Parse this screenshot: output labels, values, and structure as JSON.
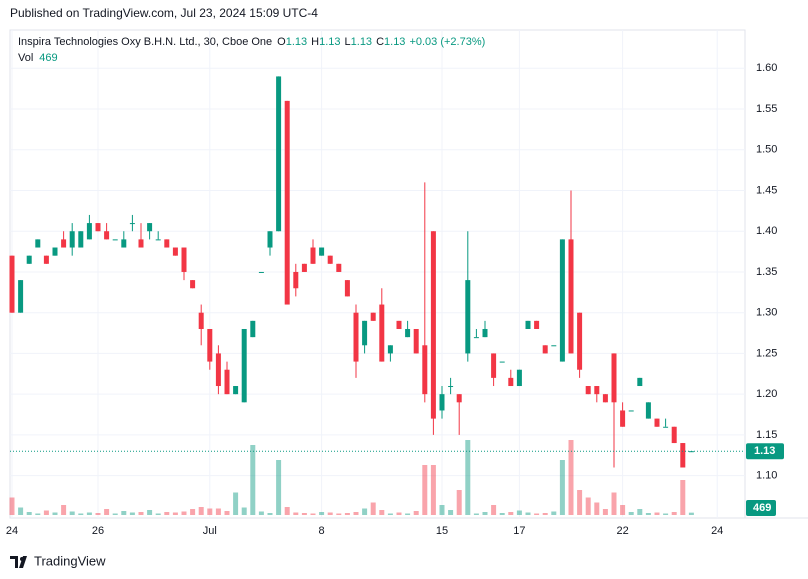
{
  "chart_data": {
    "type": "candlestick",
    "published": "Published on TradingView.com, Jul 23, 2024 15:09 UTC-4",
    "title": "Inspira Technologies Oxy B.H.N. Ltd., 30, Cboe One",
    "legend": {
      "items": [
        {
          "label": "O",
          "value": 1.13
        },
        {
          "label": "H",
          "value": 1.13
        },
        {
          "label": "L",
          "value": 1.13
        },
        {
          "label": "C",
          "value": 1.13
        }
      ],
      "change": "+0.03 (+2.73%)",
      "volume_label": "Vol",
      "volume_value": 469
    },
    "last_price": 1.13,
    "last_volume": 469,
    "brand": "TradingView",
    "up_color": "#089981",
    "down_color": "#f23645",
    "categories": [
      "24",
      null,
      null,
      null,
      null,
      null,
      null,
      null,
      null,
      null,
      "26",
      null,
      null,
      null,
      null,
      null,
      null,
      null,
      null,
      null,
      null,
      null,
      null,
      "Jul",
      null,
      null,
      null,
      null,
      null,
      null,
      null,
      null,
      null,
      null,
      null,
      null,
      "8",
      null,
      null,
      null,
      null,
      null,
      null,
      null,
      null,
      null,
      null,
      null,
      null,
      null,
      "15",
      null,
      null,
      null,
      null,
      null,
      null,
      null,
      null,
      "17",
      null,
      null,
      null,
      null,
      null,
      null,
      null,
      null,
      null,
      null,
      null,
      "22",
      null,
      null,
      null,
      null,
      null,
      null,
      null,
      null,
      null,
      null,
      "24",
      null
    ],
    "open": [
      1.37,
      1.3,
      1.36,
      1.38,
      1.37,
      1.37,
      1.39,
      1.38,
      1.38,
      1.39,
      1.41,
      1.4,
      1.39,
      1.38,
      1.41,
      1.39,
      1.4,
      1.39,
      1.39,
      1.38,
      1.38,
      1.34,
      1.3,
      1.28,
      1.25,
      1.23,
      1.2,
      1.19,
      1.27,
      1.35,
      1.38,
      1.4,
      1.56,
      1.35,
      1.36,
      1.38,
      1.37,
      1.37,
      1.36,
      1.34,
      1.3,
      1.26,
      1.3,
      1.31,
      1.25,
      1.29,
      1.27,
      1.28,
      1.26,
      1.4,
      1.18,
      1.21,
      1.2,
      1.25,
      1.27,
      1.27,
      1.25,
      1.24,
      1.22,
      1.21,
      1.28,
      1.29,
      1.26,
      1.26,
      1.24,
      1.39,
      1.3,
      1.21,
      1.21,
      1.2,
      1.25,
      1.18,
      1.18,
      1.21,
      1.17,
      1.17,
      1.16,
      1.16,
      1.14,
      1.13,
      null,
      null,
      null,
      null
    ],
    "high": [
      1.37,
      1.34,
      1.37,
      1.39,
      1.37,
      1.38,
      1.4,
      1.41,
      1.4,
      1.42,
      1.41,
      1.41,
      1.39,
      1.4,
      1.42,
      1.41,
      1.41,
      1.4,
      1.39,
      1.38,
      1.38,
      1.34,
      1.31,
      1.28,
      1.26,
      1.24,
      1.21,
      1.28,
      1.29,
      1.35,
      1.4,
      1.59,
      1.56,
      1.36,
      1.36,
      1.39,
      1.38,
      1.37,
      1.36,
      1.34,
      1.31,
      1.29,
      1.3,
      1.33,
      1.26,
      1.29,
      1.29,
      1.28,
      1.46,
      1.4,
      1.21,
      1.22,
      1.2,
      1.4,
      1.28,
      1.29,
      1.25,
      1.24,
      1.23,
      1.23,
      1.29,
      1.29,
      1.26,
      1.26,
      1.39,
      1.45,
      1.3,
      1.21,
      1.21,
      1.2,
      1.25,
      1.19,
      1.18,
      1.22,
      1.19,
      1.17,
      1.17,
      1.16,
      1.14,
      1.13,
      null,
      null,
      null,
      null
    ],
    "low": [
      1.3,
      1.3,
      1.36,
      1.38,
      1.36,
      1.37,
      1.38,
      1.37,
      1.38,
      1.39,
      1.4,
      1.39,
      1.39,
      1.38,
      1.4,
      1.38,
      1.39,
      1.39,
      1.38,
      1.37,
      1.34,
      1.33,
      1.26,
      1.23,
      1.2,
      1.2,
      1.2,
      1.19,
      1.27,
      1.35,
      1.37,
      1.4,
      1.31,
      1.32,
      1.35,
      1.36,
      1.37,
      1.36,
      1.35,
      1.32,
      1.22,
      1.25,
      1.29,
      1.24,
      1.24,
      1.28,
      1.27,
      1.25,
      1.19,
      1.15,
      1.17,
      1.2,
      1.15,
      1.24,
      1.27,
      1.27,
      1.21,
      1.24,
      1.21,
      1.21,
      1.28,
      1.28,
      1.25,
      1.26,
      1.24,
      1.25,
      1.22,
      1.2,
      1.19,
      1.19,
      1.11,
      1.16,
      1.18,
      1.21,
      1.17,
      1.16,
      1.16,
      1.14,
      1.11,
      1.13,
      null,
      null,
      null,
      null
    ],
    "close": [
      1.3,
      1.34,
      1.37,
      1.39,
      1.36,
      1.38,
      1.38,
      1.4,
      1.4,
      1.41,
      1.4,
      1.39,
      1.39,
      1.39,
      1.41,
      1.38,
      1.41,
      1.39,
      1.38,
      1.37,
      1.35,
      1.33,
      1.28,
      1.24,
      1.21,
      1.2,
      1.21,
      1.28,
      1.29,
      1.35,
      1.4,
      1.59,
      1.31,
      1.33,
      1.35,
      1.36,
      1.38,
      1.36,
      1.35,
      1.32,
      1.24,
      1.29,
      1.29,
      1.24,
      1.26,
      1.28,
      1.28,
      1.25,
      1.2,
      1.17,
      1.2,
      1.21,
      1.19,
      1.34,
      1.27,
      1.28,
      1.22,
      1.24,
      1.21,
      1.23,
      1.29,
      1.28,
      1.25,
      1.26,
      1.39,
      1.25,
      1.23,
      1.2,
      1.2,
      1.19,
      1.19,
      1.16,
      1.18,
      1.22,
      1.19,
      1.16,
      1.16,
      1.14,
      1.11,
      1.13,
      null,
      null,
      null,
      null
    ],
    "volume": [
      3500,
      1500,
      600,
      300,
      900,
      500,
      2000,
      700,
      300,
      500,
      400,
      1200,
      300,
      800,
      500,
      600,
      1000,
      300,
      600,
      500,
      700,
      1200,
      1600,
      1300,
      1300,
      800,
      4500,
      1500,
      14000,
      700,
      400,
      11000,
      1600,
      500,
      400,
      300,
      600,
      500,
      300,
      400,
      600,
      1300,
      2500,
      1000,
      300,
      500,
      300,
      800,
      10000,
      10000,
      2000,
      1000,
      5000,
      15000,
      300,
      600,
      2000,
      400,
      600,
      900,
      500,
      300,
      400,
      700,
      11000,
      15000,
      5000,
      3500,
      2500,
      1200,
      4500,
      2000,
      600,
      1200,
      400,
      500,
      300,
      600,
      7000,
      469,
      null,
      null,
      null,
      null
    ],
    "ylim": [
      1.048,
      1.647
    ],
    "volume_ylim": [
      0,
      15000
    ],
    "yticks": [
      {
        "value": 1.1,
        "label": "1.10"
      },
      {
        "value": 1.15,
        "label": "1.15"
      },
      {
        "value": 1.2,
        "label": "1.20"
      },
      {
        "value": 1.25,
        "label": "1.25"
      },
      {
        "value": 1.3,
        "label": "1.30"
      },
      {
        "value": 1.35,
        "label": "1.35"
      },
      {
        "value": 1.4,
        "label": "1.40"
      },
      {
        "value": 1.45,
        "label": "1.45"
      },
      {
        "value": 1.5,
        "label": "1.50"
      },
      {
        "value": 1.55,
        "label": "1.55"
      },
      {
        "value": 1.6,
        "label": "1.60"
      }
    ],
    "grid": true
  }
}
